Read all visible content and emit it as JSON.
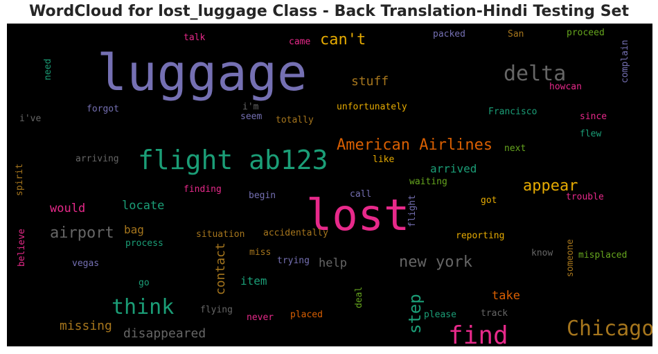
{
  "chart_data": {
    "type": "wordcloud",
    "title": "WordCloud for lost_luggage Class - Back Translation-Hindi Testing Set",
    "words": [
      {
        "text": "luggage",
        "color": "#7570b3"
      },
      {
        "text": "lost",
        "color": "#e7298a"
      },
      {
        "text": "flight ab123",
        "color": "#1b9e77"
      },
      {
        "text": "find",
        "color": "#e7298a"
      },
      {
        "text": "delta",
        "color": "#666666"
      },
      {
        "text": "Chicago",
        "color": "#a6761d"
      },
      {
        "text": "American Airlines",
        "color": "#d95f02"
      },
      {
        "text": "think",
        "color": "#1b9e77"
      },
      {
        "text": "new york",
        "color": "#666666"
      },
      {
        "text": "can't",
        "color": "#e6ab02"
      },
      {
        "text": "airport",
        "color": "#666666"
      },
      {
        "text": "appear",
        "color": "#e6ab02"
      },
      {
        "text": "step",
        "color": "#1b9e77"
      },
      {
        "text": "stuff",
        "color": "#a6761d"
      },
      {
        "text": "contact",
        "color": "#a6761d"
      },
      {
        "text": "arrived",
        "color": "#1b9e77"
      },
      {
        "text": "missing",
        "color": "#a6761d"
      },
      {
        "text": "disappeared",
        "color": "#666666"
      },
      {
        "text": "take",
        "color": "#d95f02"
      },
      {
        "text": "locate",
        "color": "#1b9e77"
      },
      {
        "text": "would",
        "color": "#e7298a"
      },
      {
        "text": "bag",
        "color": "#a6761d"
      },
      {
        "text": "help",
        "color": "#666666"
      },
      {
        "text": "item",
        "color": "#1b9e77"
      },
      {
        "text": "Francisco",
        "color": "#1b9e77"
      },
      {
        "text": "unfortunately",
        "color": "#e6ab02"
      },
      {
        "text": "complain",
        "color": "#7570b3"
      },
      {
        "text": "howcan",
        "color": "#e7298a"
      },
      {
        "text": "packed",
        "color": "#7570b3"
      },
      {
        "text": "San",
        "color": "#a6761d"
      },
      {
        "text": "proceed",
        "color": "#66a61e"
      },
      {
        "text": "talk",
        "color": "#e7298a"
      },
      {
        "text": "came",
        "color": "#e7298a"
      },
      {
        "text": "need",
        "color": "#1b9e77"
      },
      {
        "text": "forgot",
        "color": "#7570b3"
      },
      {
        "text": "i'm",
        "color": "#666666"
      },
      {
        "text": "seem",
        "color": "#7570b3"
      },
      {
        "text": "totally",
        "color": "#a6761d"
      },
      {
        "text": "i've",
        "color": "#666666"
      },
      {
        "text": "since",
        "color": "#e7298a"
      },
      {
        "text": "flew",
        "color": "#1b9e77"
      },
      {
        "text": "next",
        "color": "#66a61e"
      },
      {
        "text": "arriving",
        "color": "#666666"
      },
      {
        "text": "like",
        "color": "#e6ab02"
      },
      {
        "text": "spirit",
        "color": "#a6761d"
      },
      {
        "text": "waiting",
        "color": "#66a61e"
      },
      {
        "text": "finding",
        "color": "#e7298a"
      },
      {
        "text": "call",
        "color": "#7570b3"
      },
      {
        "text": "begin",
        "color": "#7570b3"
      },
      {
        "text": "got",
        "color": "#e6ab02"
      },
      {
        "text": "trouble",
        "color": "#e7298a"
      },
      {
        "text": "flight",
        "color": "#7570b3"
      },
      {
        "text": "believe",
        "color": "#e7298a"
      },
      {
        "text": "situation",
        "color": "#a6761d"
      },
      {
        "text": "accidentally",
        "color": "#a6761d"
      },
      {
        "text": "reporting",
        "color": "#e6ab02"
      },
      {
        "text": "process",
        "color": "#1b9e77"
      },
      {
        "text": "miss",
        "color": "#a6761d"
      },
      {
        "text": "know",
        "color": "#666666"
      },
      {
        "text": "someone",
        "color": "#a6761d"
      },
      {
        "text": "misplaced",
        "color": "#66a61e"
      },
      {
        "text": "vegas",
        "color": "#7570b3"
      },
      {
        "text": "trying",
        "color": "#7570b3"
      },
      {
        "text": "go",
        "color": "#1b9e77"
      },
      {
        "text": "deal",
        "color": "#66a61e"
      },
      {
        "text": "flying",
        "color": "#666666"
      },
      {
        "text": "never",
        "color": "#e7298a"
      },
      {
        "text": "placed",
        "color": "#d95f02"
      },
      {
        "text": "please",
        "color": "#1b9e77"
      },
      {
        "text": "track",
        "color": "#666666"
      }
    ]
  }
}
